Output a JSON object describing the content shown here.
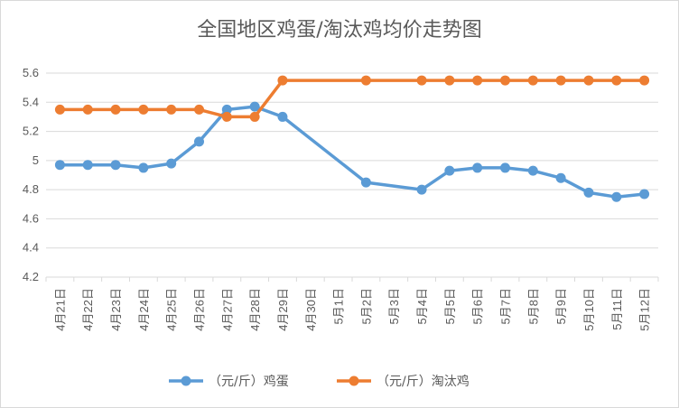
{
  "chart_data": {
    "type": "line",
    "title": "全国地区鸡蛋/淘汰鸡均价走势图",
    "categories": [
      "4月21日",
      "4月22日",
      "4月23日",
      "4月24日",
      "4月25日",
      "4月26日",
      "4月27日",
      "4月28日",
      "4月29日",
      "4月30日",
      "5月1日",
      "5月2日",
      "5月3日",
      "5月4日",
      "5月5日",
      "5月6日",
      "5月7日",
      "5月8日",
      "5月9日",
      "5月10日",
      "5月11日",
      "5月12日"
    ],
    "yticks": [
      "5.6",
      "5.4",
      "5.2",
      "5",
      "4.8",
      "4.6",
      "4.4",
      "4.2"
    ],
    "ylim": [
      4.2,
      5.6
    ],
    "grid": true,
    "legend_position": "bottom",
    "series": [
      {
        "name": "（元/斤）鸡蛋",
        "color": "#5b9bd5",
        "values": [
          4.97,
          4.97,
          4.97,
          4.95,
          4.98,
          5.13,
          5.35,
          5.37,
          5.3,
          null,
          null,
          4.85,
          null,
          4.8,
          4.93,
          4.95,
          4.95,
          4.93,
          4.88,
          4.78,
          4.75,
          4.77
        ]
      },
      {
        "name": "（元/斤）淘汰鸡",
        "color": "#ed7d31",
        "values": [
          5.35,
          5.35,
          5.35,
          5.35,
          5.35,
          5.35,
          5.3,
          5.3,
          5.55,
          null,
          null,
          5.55,
          null,
          5.55,
          5.55,
          5.55,
          5.55,
          5.55,
          5.55,
          5.55,
          5.55,
          5.55
        ]
      }
    ]
  }
}
